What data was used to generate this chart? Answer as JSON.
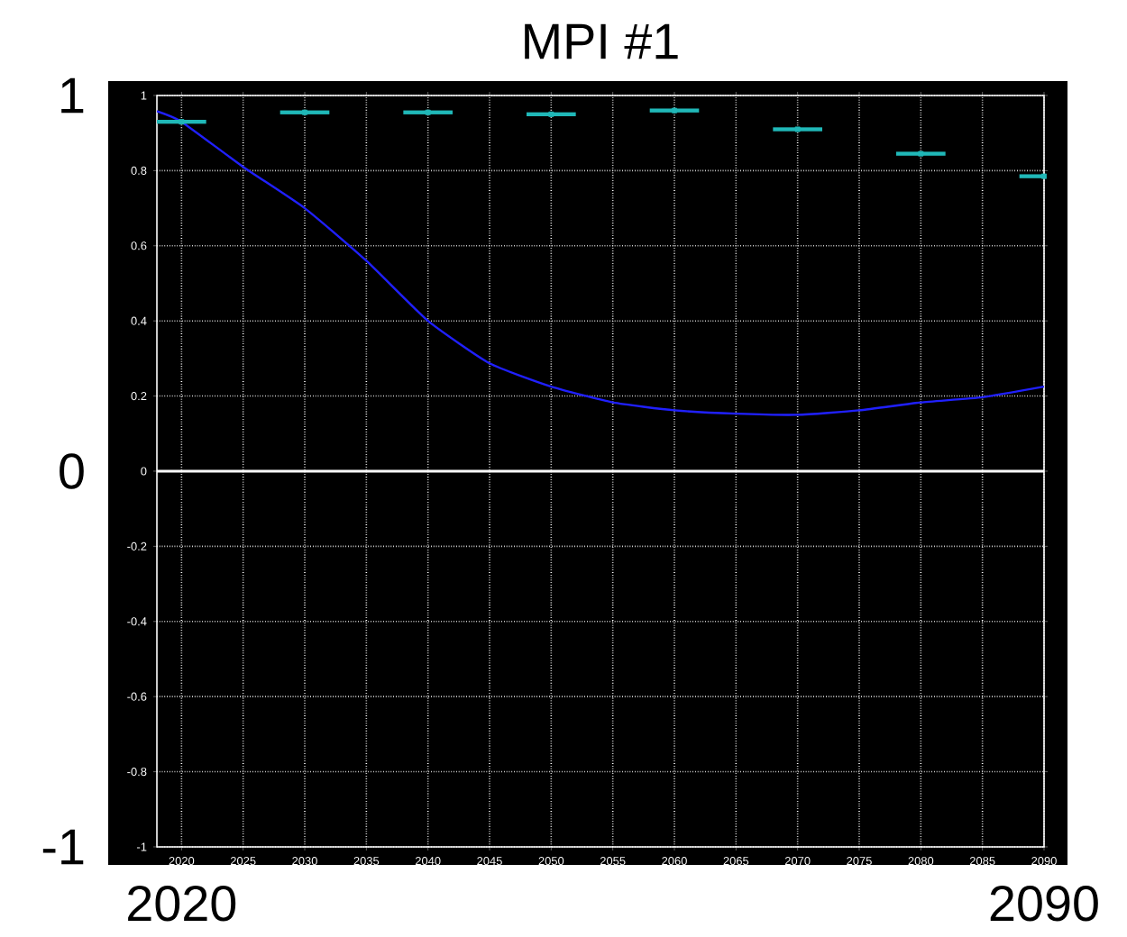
{
  "chart_data": {
    "type": "line",
    "title": "MPI #1",
    "x": [
      2018,
      2020,
      2025,
      2030,
      2035,
      2040,
      2045,
      2050,
      2055,
      2060,
      2065,
      2070,
      2075,
      2080,
      2085,
      2090
    ],
    "series": [
      {
        "color": "#2020ff",
        "values": [
          0.958,
          0.93,
          0.81,
          0.7,
          0.56,
          0.4,
          0.287,
          0.225,
          0.183,
          0.162,
          0.153,
          0.15,
          0.162,
          0.183,
          0.197,
          0.225
        ]
      },
      {
        "type": "scatter",
        "color": "#20b8b8",
        "marker": "square",
        "xerrors": [
          2,
          2,
          2,
          2,
          2,
          2,
          2,
          2
        ],
        "x": [
          2020,
          2030,
          2040,
          2050,
          2060,
          2070,
          2080,
          2090
        ],
        "values": [
          0.93,
          0.955,
          0.955,
          0.95,
          0.96,
          0.91,
          0.845,
          0.785
        ]
      }
    ],
    "xlim": [
      2018,
      2090
    ],
    "ylim": [
      -1,
      1
    ],
    "xticks": [
      2020,
      2025,
      2030,
      2035,
      2040,
      2045,
      2050,
      2055,
      2060,
      2065,
      2070,
      2075,
      2080,
      2085,
      2090
    ],
    "yticks": [
      -1,
      -0.8,
      -0.6,
      -0.4,
      -0.2,
      0,
      0.2,
      0.4,
      0.6,
      0.8,
      1
    ],
    "x2lim": [
      2018,
      2090
    ],
    "x2ticks": [
      2020,
      2090
    ],
    "y2lim": [
      -1,
      1
    ],
    "y2ticks": [
      -1,
      0,
      1
    ],
    "grid": true,
    "ref_lines": [
      {
        "axis": "y",
        "value": 0,
        "color": "#ffffff"
      }
    ]
  }
}
